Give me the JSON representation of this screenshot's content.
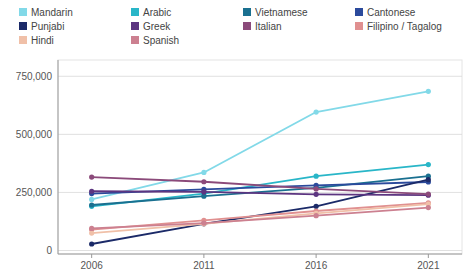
{
  "chart_data": {
    "type": "line",
    "x": [
      2006,
      2011,
      2016,
      2021
    ],
    "series": [
      {
        "name": "Mandarin",
        "color": "#82D9E8",
        "values": [
          220000,
          336000,
          596000,
          685000
        ]
      },
      {
        "name": "Arabic",
        "color": "#29B6C8",
        "values": [
          190000,
          245000,
          320000,
          370000
        ]
      },
      {
        "name": "Vietnamese",
        "color": "#1A7090",
        "values": [
          196000,
          234000,
          270000,
          320000
        ]
      },
      {
        "name": "Cantonese",
        "color": "#2B4A9C",
        "values": [
          245000,
          263000,
          280000,
          295000
        ]
      },
      {
        "name": "Punjabi",
        "color": "#1B2A68",
        "values": [
          28000,
          115000,
          190000,
          305000
        ]
      },
      {
        "name": "Greek",
        "color": "#5C3580",
        "values": [
          255000,
          252000,
          242000,
          238000
        ]
      },
      {
        "name": "Italian",
        "color": "#8B4A7A",
        "values": [
          316000,
          296000,
          265000,
          243000
        ]
      },
      {
        "name": "Filipino / Tagalog",
        "color": "#E09090",
        "values": [
          90000,
          130000,
          170000,
          205000
        ]
      },
      {
        "name": "Hindi",
        "color": "#F0C0A8",
        "values": [
          75000,
          115000,
          160000,
          200000
        ]
      },
      {
        "name": "Spanish",
        "color": "#CC8090",
        "values": [
          95000,
          118000,
          150000,
          185000
        ]
      }
    ],
    "xlim": [
      2004.5,
      2022.5
    ],
    "xticks": [
      2006,
      2011,
      2016,
      2021
    ],
    "ylim": [
      -15000,
      820000
    ],
    "yticks": [
      0,
      {
        "value": 250000,
        "label": "250,000"
      },
      {
        "value": 500000,
        "label": "500,000"
      },
      {
        "value": 750000,
        "label": "750,000"
      }
    ],
    "grid": true,
    "marker": "circle",
    "legend": "top"
  }
}
